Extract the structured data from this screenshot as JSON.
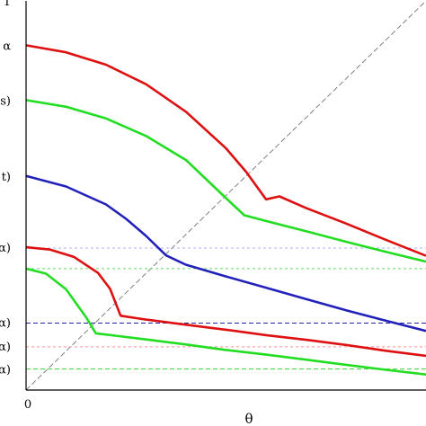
{
  "chart_data": {
    "type": "line",
    "xlabel": "θ",
    "ylabel": "",
    "xlim": [
      0,
      1
    ],
    "ylim": [
      0,
      1
    ],
    "grid": false,
    "x_ticks": [
      {
        "value": 0,
        "label": "0"
      }
    ],
    "y_ticks": [
      {
        "value": 1.0,
        "label": "1"
      },
      {
        "value": 0.886,
        "label": "α"
      },
      {
        "value": 0.745,
        "label": "s)"
      },
      {
        "value": 0.55,
        "label": "t)"
      },
      {
        "value": 0.367,
        "label": "α)"
      },
      {
        "value": 0.174,
        "label": "α)"
      },
      {
        "value": 0.113,
        "label": "α)"
      },
      {
        "value": 0.054,
        "label": "α)"
      }
    ],
    "reference_lines": [
      {
        "kind": "diagonal",
        "color": "#808080",
        "dash": "6,3"
      },
      {
        "kind": "horizontal",
        "y": 0.365,
        "color": "#b0b0ff",
        "dash": "3,3"
      },
      {
        "kind": "horizontal",
        "y": 0.312,
        "color": "#60dd60",
        "dash": "3,3"
      },
      {
        "kind": "horizontal",
        "y": 0.172,
        "color": "#2020a0",
        "dash": "5,3"
      },
      {
        "kind": "horizontal",
        "y": 0.111,
        "color": "#ff9090",
        "dash": "3,3"
      },
      {
        "kind": "horizontal",
        "y": 0.054,
        "color": "#40cc40",
        "dash": "5,3"
      }
    ],
    "series": [
      {
        "color": "#dd1111",
        "x": [
          0,
          0.1,
          0.2,
          0.3,
          0.4,
          0.5,
          0.55,
          0.6,
          0.6335,
          0.7,
          0.8,
          0.9,
          1.0
        ],
        "y": [
          0.886,
          0.868,
          0.836,
          0.786,
          0.715,
          0.621,
          0.561,
          0.49,
          0.4978,
          0.468,
          0.428,
          0.386,
          0.345
        ]
      },
      {
        "color": "#22dd22",
        "x": [
          0,
          0.1,
          0.2,
          0.3,
          0.4,
          0.5,
          0.5456,
          0.6,
          0.7,
          0.8,
          0.9,
          1.0
        ],
        "y": [
          0.745,
          0.728,
          0.698,
          0.653,
          0.591,
          0.493,
          0.4493,
          0.4345,
          0.408,
          0.381,
          0.355,
          0.33
        ]
      },
      {
        "color": "#2222bb",
        "x": [
          0,
          0.1,
          0.2,
          0.25,
          0.3,
          0.35,
          0.3994,
          0.5,
          0.6,
          0.7,
          0.8,
          0.9,
          1.0
        ],
        "y": [
          0.55,
          0.523,
          0.477,
          0.44,
          0.396,
          0.346,
          0.3221,
          0.292,
          0.263,
          0.234,
          0.205,
          0.178,
          0.152
        ]
      },
      {
        "color": "#dd1111",
        "x": [
          0,
          0.06,
          0.12,
          0.18,
          0.21,
          0.2365,
          0.3,
          0.4,
          0.5,
          0.6,
          0.7,
          0.8,
          0.9,
          1.0
        ],
        "y": [
          0.367,
          0.361,
          0.342,
          0.301,
          0.26,
          0.1909,
          0.181,
          0.168,
          0.155,
          0.141,
          0.129,
          0.116,
          0.101,
          0.088
        ]
      },
      {
        "color": "#22dd22",
        "x": [
          0,
          0.05,
          0.1,
          0.15,
          0.1745,
          0.3,
          0.4,
          0.5,
          0.6,
          0.7,
          0.8,
          0.9,
          1.0
        ],
        "y": [
          0.312,
          0.299,
          0.259,
          0.187,
          0.1458,
          0.13,
          0.117,
          0.103,
          0.091,
          0.078,
          0.065,
          0.052,
          0.04
        ]
      }
    ]
  }
}
